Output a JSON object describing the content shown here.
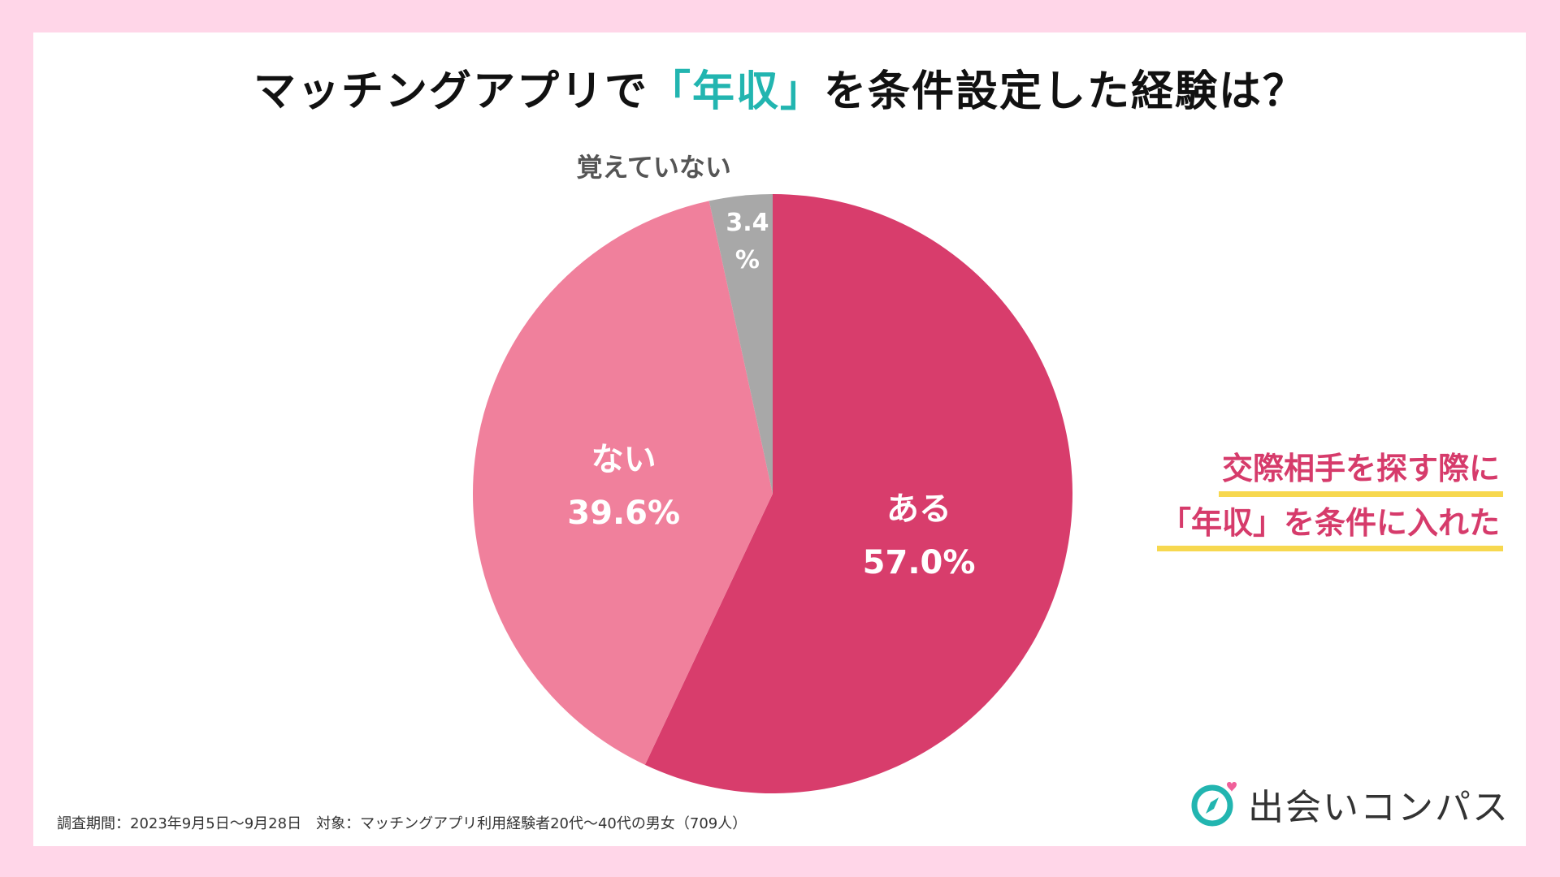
{
  "title": {
    "prefix": "マッチングアプリで",
    "highlight": "「年収」",
    "suffix": "を条件設定した経験は？"
  },
  "chart_data": {
    "type": "pie",
    "title": "マッチングアプリで「年収」を条件設定した経験は？",
    "slices": [
      {
        "label": "ある",
        "value_text": "57.0%",
        "value": 57.0,
        "color": "#d83d6c"
      },
      {
        "label": "ない",
        "value_text": "39.6%",
        "value": 39.6,
        "color": "#f0809c"
      },
      {
        "label": "覚えていない",
        "value_text": "3.4%",
        "value_top": "3.4",
        "value_bottom": "%",
        "value": 3.4,
        "color": "#a8a8a8"
      }
    ]
  },
  "annotation": {
    "line1": "交際相手を探す際に",
    "line2": "「年収」を条件に入れた"
  },
  "footer": "調査期間：2023年9月5日〜9月28日　対象：マッチングアプリ利用経験者20代〜40代の男女（709人）",
  "logo": {
    "text": "出会いコンパス",
    "icon": "compass-heart-icon",
    "colors": {
      "teal": "#22b5b0",
      "pink": "#f0609a"
    }
  },
  "colors": {
    "background": "#ffd6e8",
    "accent_teal": "#22b5b0",
    "accent_pink": "#d63b6b",
    "underline_yellow": "#f7d84f"
  }
}
